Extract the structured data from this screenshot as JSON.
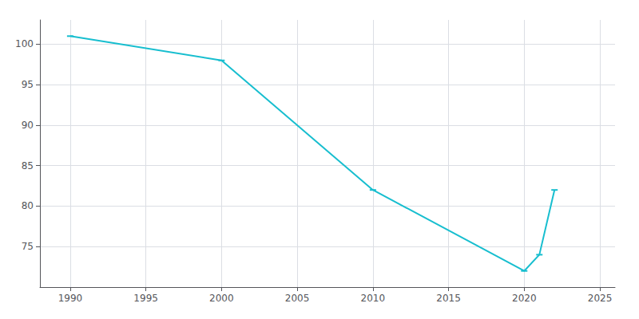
{
  "chart_data": {
    "type": "line",
    "x": [
      1990,
      2000,
      2010,
      2020,
      2021,
      2022
    ],
    "values": [
      101,
      98,
      82,
      72,
      74,
      82
    ],
    "color": "#17BECF",
    "xlim": [
      1988,
      2026
    ],
    "ylim": [
      70,
      103
    ],
    "xticks": [
      1990,
      1995,
      2000,
      2005,
      2010,
      2015,
      2020,
      2025
    ],
    "yticks": [
      75,
      80,
      85,
      90,
      95,
      100
    ],
    "grid": true,
    "marker": "dash"
  }
}
